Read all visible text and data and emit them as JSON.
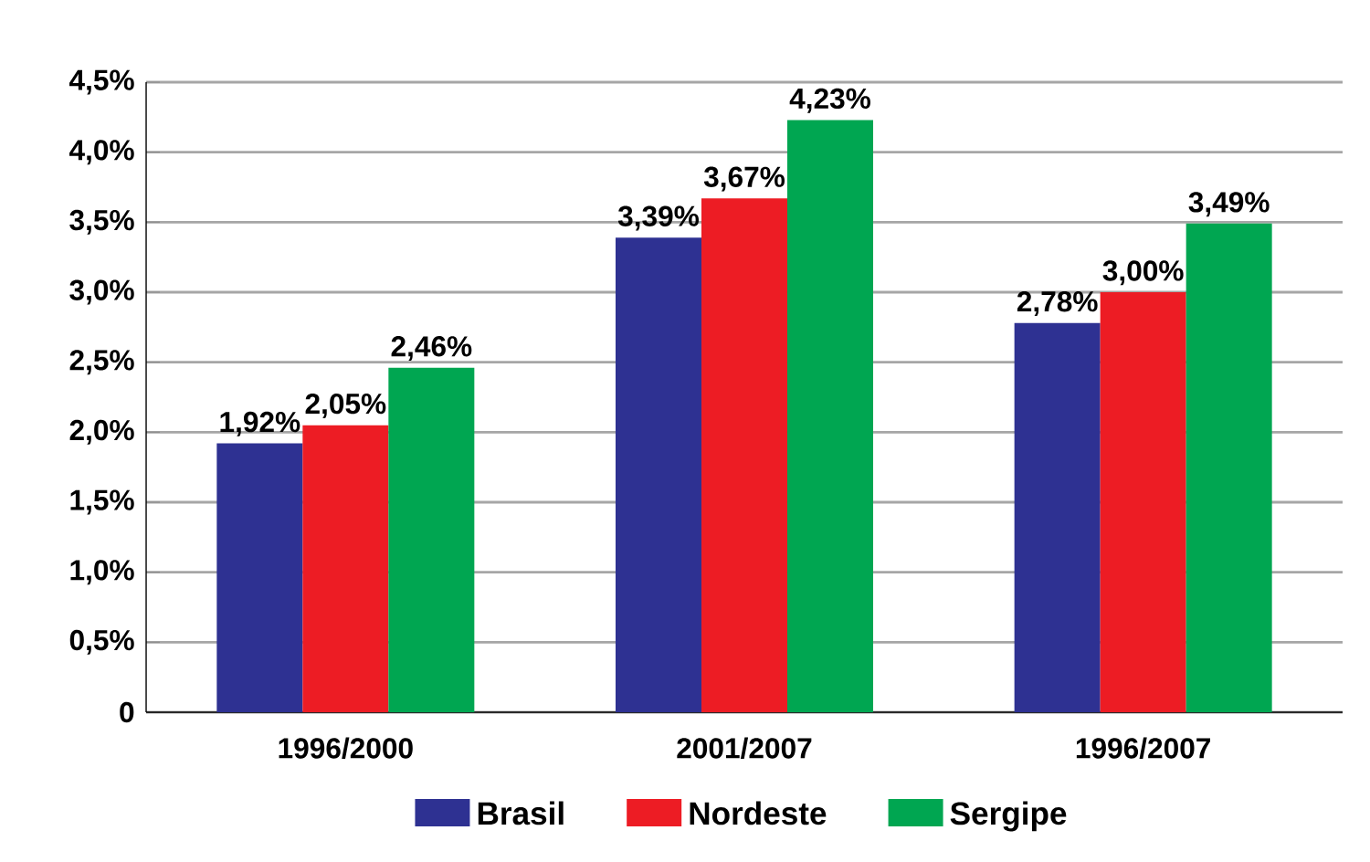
{
  "chart_data": {
    "type": "bar",
    "categories": [
      "1996/2000",
      "2001/2007",
      "1996/2007"
    ],
    "series": [
      {
        "name": "Brasil",
        "color": "#2e3192",
        "values": [
          1.92,
          3.39,
          2.78
        ],
        "value_labels": [
          "1,92%",
          "3,39%",
          "2,78%"
        ]
      },
      {
        "name": "Nordeste",
        "color": "#ed1c24",
        "values": [
          2.05,
          3.67,
          3.0
        ],
        "value_labels": [
          "2,05%",
          "3,67%",
          "3,00%"
        ]
      },
      {
        "name": "Sergipe",
        "color": "#00a651",
        "values": [
          2.46,
          4.23,
          3.49
        ],
        "value_labels": [
          "2,46%",
          "4,23%",
          "3,49%"
        ]
      }
    ],
    "ylim": [
      0,
      4.5
    ],
    "yticks": [
      {
        "value": 0,
        "label": "0"
      },
      {
        "value": 0.5,
        "label": "0,5%"
      },
      {
        "value": 1,
        "label": "1,0%"
      },
      {
        "value": 1.5,
        "label": "1,5%"
      },
      {
        "value": 2,
        "label": "2,0%"
      },
      {
        "value": 2.5,
        "label": "2,5%"
      },
      {
        "value": 3,
        "label": "3,0%"
      },
      {
        "value": 3.5,
        "label": "3,5%"
      },
      {
        "value": 4,
        "label": "4,0%"
      },
      {
        "value": 4.5,
        "label": "4,5%"
      }
    ],
    "grid": "y",
    "legend": "bottom"
  }
}
